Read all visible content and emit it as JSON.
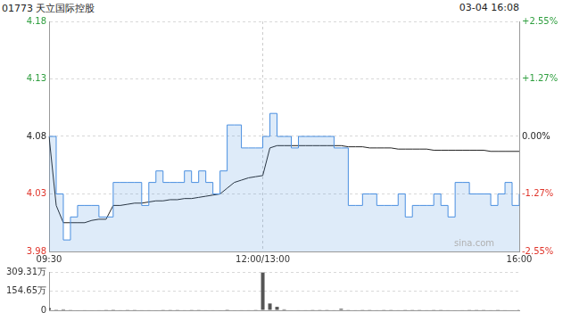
{
  "chart_data": [
    {
      "type": "line",
      "title": "01773 天立国际控股",
      "subtitle": "03-04 16:08",
      "categories": [
        "09:30",
        null,
        null,
        null,
        null,
        null,
        null,
        null,
        null,
        null,
        null,
        null,
        null,
        null,
        null,
        null,
        null,
        null,
        null,
        null,
        null,
        null,
        null,
        null,
        null,
        null,
        null,
        null,
        null,
        null,
        "12:00/13:00",
        null,
        null,
        null,
        null,
        null,
        null,
        null,
        null,
        null,
        null,
        null,
        null,
        null,
        null,
        null,
        null,
        null,
        null,
        null,
        null,
        null,
        null,
        null,
        null,
        null,
        null,
        null,
        null,
        null,
        null,
        null,
        null,
        null,
        null,
        null,
        "16:00"
      ],
      "series": [
        {
          "type": "area",
          "color": "#4a8fe0",
          "line_style": "stepped",
          "values": [
            4.08,
            4.03,
            3.99,
            4.01,
            4.02,
            4.02,
            4.02,
            4.01,
            4.01,
            4.04,
            4.04,
            4.04,
            4.04,
            4.02,
            4.04,
            4.05,
            4.04,
            4.04,
            4.04,
            4.05,
            4.04,
            4.05,
            4.04,
            4.03,
            4.05,
            4.09,
            4.09,
            4.07,
            4.07,
            4.07,
            4.08,
            4.1,
            4.08,
            4.08,
            4.07,
            4.08,
            4.08,
            4.08,
            4.08,
            4.08,
            4.07,
            4.07,
            4.02,
            4.02,
            4.03,
            4.03,
            4.02,
            4.02,
            4.02,
            4.03,
            4.01,
            4.02,
            4.02,
            4.02,
            4.03,
            4.02,
            4.01,
            4.04,
            4.04,
            4.03,
            4.03,
            4.03,
            4.02,
            4.03,
            4.04,
            4.02,
            4.03
          ]
        },
        {
          "type": "line",
          "color": "#222222",
          "line_style": "solid",
          "values": [
            4.08,
            4.02,
            4.005,
            4.005,
            4.005,
            4.005,
            4.007,
            4.008,
            4.008,
            4.02,
            4.02,
            4.021,
            4.022,
            4.022,
            4.023,
            4.024,
            4.024,
            4.025,
            4.025,
            4.026,
            4.026,
            4.027,
            4.028,
            4.029,
            4.03,
            4.035,
            4.04,
            4.042,
            4.044,
            4.045,
            4.046,
            4.07,
            4.072,
            4.072,
            4.072,
            4.072,
            4.072,
            4.072,
            4.072,
            4.072,
            4.072,
            4.072,
            4.071,
            4.071,
            4.071,
            4.07,
            4.07,
            4.07,
            4.07,
            4.069,
            4.069,
            4.069,
            4.069,
            4.069,
            4.068,
            4.068,
            4.068,
            4.068,
            4.068,
            4.068,
            4.068,
            4.068,
            4.067,
            4.067,
            4.067,
            4.067,
            4.067
          ]
        }
      ],
      "ylim": [
        3.98,
        4.18
      ],
      "yticks": [
        3.98,
        4.03,
        4.08,
        4.13,
        4.18
      ],
      "y2lim": [
        -2.55,
        2.55
      ],
      "y2ticks": [
        {
          "value": -2.55,
          "label": "-2.55%"
        },
        {
          "value": -1.27,
          "label": "-1.27%"
        },
        {
          "value": 0,
          "label": "0.00%"
        },
        {
          "value": 1.27,
          "label": "+1.27%"
        },
        {
          "value": 2.55,
          "label": "+2.55%"
        }
      ],
      "grid": true,
      "annotations": [
        {
          "text": "sina.com"
        }
      ]
    },
    {
      "type": "bar",
      "categories": [
        "09:30",
        null,
        null,
        null,
        null,
        null,
        null,
        null,
        null,
        null,
        null,
        null,
        null,
        null,
        null,
        null,
        null,
        null,
        null,
        null,
        null,
        null,
        null,
        null,
        null,
        null,
        null,
        null,
        null,
        null,
        "12:00/13:00",
        null,
        null,
        null,
        null,
        null,
        null,
        null,
        null,
        null,
        null,
        null,
        null,
        null,
        null,
        null,
        null,
        null,
        null,
        null,
        null,
        null,
        null,
        null,
        null,
        null,
        null,
        null,
        null,
        null,
        null,
        null,
        null,
        null,
        null,
        null,
        "16:00"
      ],
      "values": [
        18,
        6,
        8,
        5,
        4,
        3,
        4,
        3,
        2,
        6,
        3,
        2,
        2,
        3,
        3,
        4,
        2,
        2,
        2,
        3,
        2,
        2,
        3,
        3,
        4,
        6,
        4,
        3,
        3,
        2,
        305,
        55,
        28,
        8,
        4,
        3,
        3,
        2,
        2,
        2,
        3,
        12,
        5,
        3,
        2,
        2,
        3,
        2,
        2,
        3,
        2,
        2,
        2,
        3,
        2,
        2,
        3,
        4,
        3,
        2,
        2,
        2,
        3,
        2,
        3,
        4,
        6
      ],
      "color": "#555555",
      "ylim": [
        0,
        309.31
      ],
      "yticks": [
        0,
        {
          "value": 154.65,
          "label": "154.65万"
        },
        {
          "value": 309.31,
          "label": "309.31万"
        }
      ],
      "grid": true,
      "tick_labels": "y"
    }
  ]
}
